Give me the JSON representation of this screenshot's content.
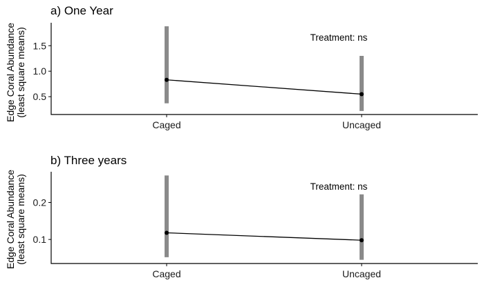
{
  "chart_data": [
    {
      "type": "line",
      "title": "a) One Year",
      "ylabel_line1": "Edge Coral Abundance",
      "ylabel_line2": "(least square means)",
      "xlabel": "",
      "categories": [
        "Caged",
        "Uncaged"
      ],
      "series": [
        {
          "values": [
            0.83,
            0.55
          ],
          "lower": [
            0.37,
            0.22
          ],
          "upper": [
            1.88,
            1.3
          ]
        }
      ],
      "ylim": [
        0.15,
        1.95
      ],
      "yticks": [
        0.5,
        1.0,
        1.5
      ],
      "ytick_labels": [
        "0.5",
        "1.0",
        "1.5"
      ],
      "annotation": "Treatment: ns",
      "grid": false
    },
    {
      "type": "line",
      "title": "b) Three years",
      "ylabel_line1": "Edge Coral Abundance",
      "ylabel_line2": "(least square means)",
      "xlabel": "",
      "categories": [
        "Caged",
        "Uncaged"
      ],
      "series": [
        {
          "values": [
            0.118,
            0.098
          ],
          "lower": [
            0.052,
            0.045
          ],
          "upper": [
            0.273,
            0.222
          ]
        }
      ],
      "ylim": [
        0.035,
        0.283
      ],
      "yticks": [
        0.1,
        0.2
      ],
      "ytick_labels": [
        "0.1",
        "0.2"
      ],
      "annotation": "Treatment: ns",
      "grid": false
    }
  ],
  "colors": {
    "errorbar": "#8a8a8a",
    "line": "#000000",
    "point": "#000000"
  }
}
